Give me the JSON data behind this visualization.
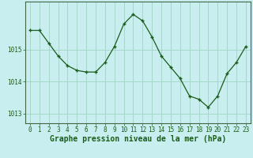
{
  "x": [
    0,
    1,
    2,
    3,
    4,
    5,
    6,
    7,
    8,
    9,
    10,
    11,
    12,
    13,
    14,
    15,
    16,
    17,
    18,
    19,
    20,
    21,
    22,
    23
  ],
  "y": [
    1015.6,
    1015.6,
    1015.2,
    1014.8,
    1014.5,
    1014.35,
    1014.3,
    1014.3,
    1014.6,
    1015.1,
    1015.8,
    1016.1,
    1015.9,
    1015.4,
    1014.8,
    1014.45,
    1014.1,
    1013.55,
    1013.45,
    1013.2,
    1013.55,
    1014.25,
    1014.6,
    1015.1
  ],
  "line_color": "#1a5c1a",
  "marker_color": "#1a5c1a",
  "bg_color": "#c8eef0",
  "grid_color": "#99ccbb",
  "xlabel": "Graphe pression niveau de la mer (hPa)",
  "yticks": [
    1013,
    1014,
    1015
  ],
  "xticks": [
    0,
    1,
    2,
    3,
    4,
    5,
    6,
    7,
    8,
    9,
    10,
    11,
    12,
    13,
    14,
    15,
    16,
    17,
    18,
    19,
    20,
    21,
    22,
    23
  ],
  "ylim": [
    1012.7,
    1016.5
  ],
  "xlim": [
    -0.5,
    23.5
  ],
  "tick_fontsize": 5.5,
  "label_fontsize": 7.0
}
